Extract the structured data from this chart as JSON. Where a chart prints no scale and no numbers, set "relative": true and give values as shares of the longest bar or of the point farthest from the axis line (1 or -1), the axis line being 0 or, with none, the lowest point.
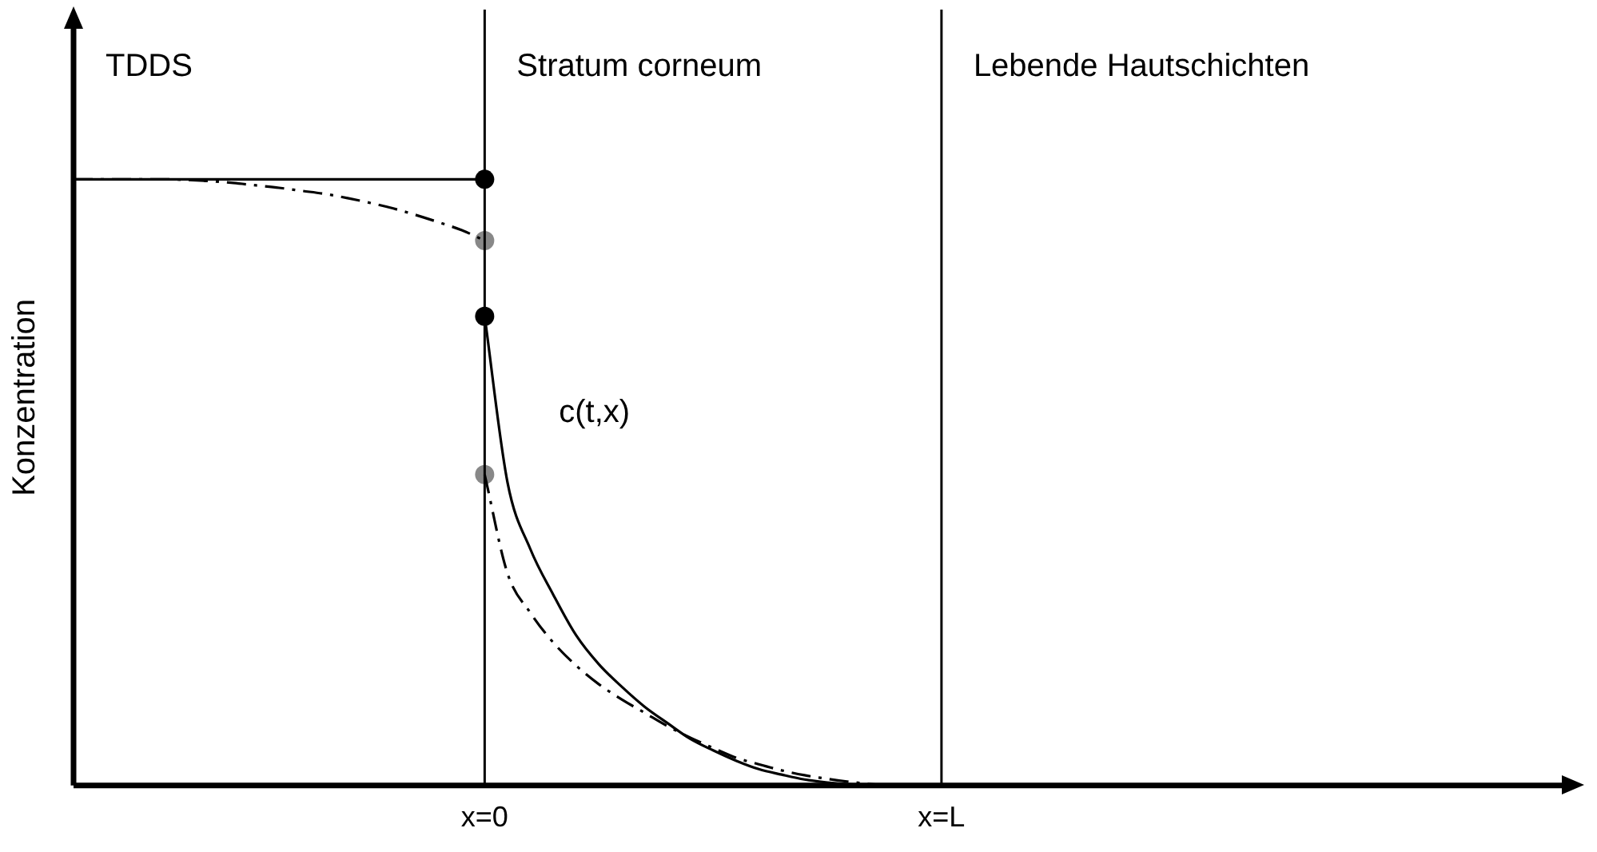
{
  "chart_data": {
    "type": "line",
    "relative": true,
    "ylabel": "Konzentration",
    "tick_labels": "x",
    "legend": false,
    "marker": "none",
    "categories": [
      null,
      null,
      null,
      null,
      null,
      null,
      null,
      null,
      null,
      null,
      null,
      null,
      null,
      null,
      null,
      null,
      null,
      null,
      "x=0",
      null,
      null,
      null,
      null,
      null,
      null,
      null,
      null,
      null,
      null,
      null,
      null,
      null,
      null,
      null,
      null,
      null,
      null,
      null,
      "x=L",
      null,
      null,
      null,
      null,
      null,
      null,
      null,
      null,
      null,
      null,
      null,
      null,
      null,
      null,
      null,
      null,
      null,
      null,
      null,
      null,
      null,
      null,
      null,
      null,
      null,
      null,
      null,
      null
    ],
    "ref_lines": [
      {
        "axis": "x",
        "value": "x=0",
        "color": "#000000"
      },
      {
        "axis": "x",
        "value": "x=L",
        "color": "#000000"
      }
    ],
    "annotations": [
      "TDDS",
      "Stratum corneum",
      "Lebende Hautschichten",
      "c(t,x)"
    ],
    "series": [
      {
        "color": "#000000",
        "line_style": "solid",
        "values": [
          1,
          1,
          1,
          1,
          1,
          1,
          1,
          1,
          1,
          1,
          1,
          1,
          1,
          1,
          1,
          1,
          1,
          1,
          1,
          null,
          null,
          null,
          null,
          null,
          null,
          null,
          null,
          null,
          null,
          null,
          null,
          null,
          null,
          null,
          null,
          null,
          null,
          null,
          null,
          null,
          null,
          null,
          null,
          null,
          null,
          null,
          null,
          null,
          null,
          null,
          null,
          null,
          null,
          null,
          null,
          null,
          null,
          null,
          null,
          null,
          null,
          null,
          null,
          null,
          null,
          null,
          null
        ]
      },
      {
        "color": "#000000",
        "line_style": "solid",
        "values": [
          null,
          null,
          null,
          null,
          null,
          null,
          null,
          null,
          null,
          null,
          null,
          null,
          null,
          null,
          null,
          null,
          null,
          null,
          0.774,
          0.5,
          0.39,
          0.315,
          0.248,
          0.2,
          0.163,
          0.13,
          0.103,
          0.077,
          0.058,
          0.041,
          0.027,
          0.018,
          0.01,
          0.005,
          0.002,
          0.001,
          0,
          null,
          null,
          null,
          null,
          null,
          null,
          null,
          null,
          null,
          null,
          null,
          null,
          null,
          null,
          null,
          null,
          null,
          null,
          null,
          null,
          null,
          null,
          null,
          null,
          null,
          null,
          null,
          null,
          null,
          null
        ]
      },
      {
        "color": "#000000",
        "line_style": "dashed",
        "values": [
          1,
          1,
          1,
          1,
          1,
          0.999,
          0.997,
          0.994,
          0.99,
          0.986,
          0.981,
          0.976,
          0.969,
          0.961,
          0.952,
          0.941,
          0.929,
          0.916,
          0.899,
          null,
          null,
          null,
          null,
          null,
          null,
          null,
          null,
          null,
          null,
          null,
          null,
          null,
          null,
          null,
          null,
          null,
          null,
          null,
          null,
          null,
          null,
          null,
          null,
          null,
          null,
          null,
          null,
          null,
          null,
          null,
          null,
          null,
          null,
          null,
          null,
          null,
          null,
          null,
          null,
          null,
          null,
          null,
          null,
          null,
          null,
          null,
          null
        ]
      },
      {
        "color": "#000000",
        "line_style": "dashed",
        "values": [
          null,
          null,
          null,
          null,
          null,
          null,
          null,
          null,
          null,
          null,
          null,
          null,
          null,
          null,
          null,
          null,
          null,
          null,
          0.513,
          0.35,
          0.285,
          0.236,
          0.198,
          0.167,
          0.142,
          0.12,
          0.098,
          0.079,
          0.062,
          0.046,
          0.035,
          0.025,
          0.017,
          0.011,
          0.006,
          0.002,
          0,
          null,
          null,
          null,
          null,
          null,
          null,
          null,
          null,
          null,
          null,
          null,
          null,
          null,
          null,
          null,
          null,
          null,
          null,
          null,
          null,
          null,
          null,
          null,
          null,
          null,
          null,
          null,
          null,
          null,
          null
        ]
      },
      {
        "type": "scatter",
        "color": "#000000",
        "marker": "circle",
        "x": [
          "x=0",
          "x=0"
        ],
        "values": [
          1,
          0.774
        ]
      },
      {
        "type": "scatter",
        "color": "#888888",
        "marker": "circle",
        "x": [
          "x=0",
          "x=0"
        ],
        "values": [
          0.899,
          0.513
        ]
      }
    ]
  }
}
